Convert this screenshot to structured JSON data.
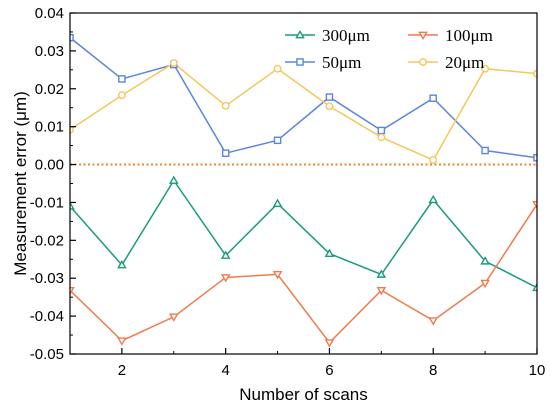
{
  "chart_data": {
    "type": "line",
    "title": "",
    "xlabel": "Number of scans",
    "ylabel": "Measurement error (μm)",
    "xlim": [
      1,
      10
    ],
    "ylim": [
      -0.05,
      0.04
    ],
    "xticks": [
      2,
      4,
      6,
      8,
      10
    ],
    "yticks": [
      -0.05,
      -0.04,
      -0.03,
      -0.02,
      -0.01,
      0.0,
      0.01,
      0.02,
      0.03,
      0.04
    ],
    "ytick_labels": [
      "-0.05",
      "-0.04",
      "-0.03",
      "-0.02",
      "-0.01",
      "0.00",
      "0.01",
      "0.02",
      "0.03",
      "0.04"
    ],
    "grid": false,
    "legend_position": "top-right",
    "reference_line": {
      "y": 0,
      "color": "#f5822a",
      "style": "dotted"
    },
    "x": [
      1,
      2,
      3,
      4,
      5,
      6,
      7,
      8,
      9,
      10
    ],
    "series": [
      {
        "name": "300μm",
        "color": "#1a9b7c",
        "marker": "triangle-up",
        "values": [
          -0.011,
          -0.0265,
          -0.0042,
          -0.024,
          -0.0103,
          -0.0235,
          -0.029,
          -0.0093,
          -0.0255,
          -0.0325
        ]
      },
      {
        "name": "100μm",
        "color": "#f07a50",
        "marker": "triangle-down",
        "values": [
          -0.0332,
          -0.0465,
          -0.0402,
          -0.0298,
          -0.029,
          -0.047,
          -0.0332,
          -0.0412,
          -0.0313,
          -0.0105
        ]
      },
      {
        "name": "50μm",
        "color": "#5b85e0",
        "marker": "square",
        "values": [
          0.0335,
          0.0226,
          0.0264,
          0.003,
          0.0064,
          0.0178,
          0.009,
          0.0175,
          0.0037,
          0.0018
        ]
      },
      {
        "name": "20μm",
        "color": "#f5c75b",
        "marker": "circle",
        "values": [
          0.0092,
          0.0183,
          0.0268,
          0.0155,
          0.0253,
          0.0154,
          0.0072,
          0.0012,
          0.0253,
          0.024
        ]
      }
    ]
  }
}
